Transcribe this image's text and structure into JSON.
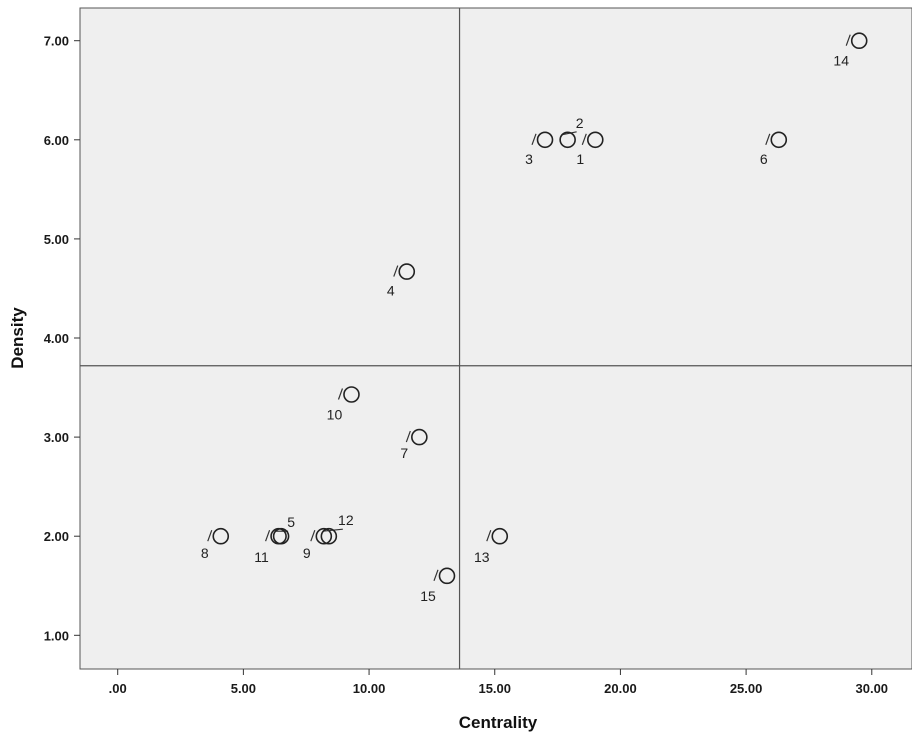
{
  "chart_data": {
    "type": "scatter",
    "xlabel": "Centrality",
    "ylabel": "Density",
    "xlim": [
      -1.5,
      31.6
    ],
    "ylim": [
      0.66,
      7.33
    ],
    "x_ticks": [
      {
        "value": 0,
        "label": ".00"
      },
      {
        "value": 5,
        "label": "5.00"
      },
      {
        "value": 10,
        "label": "10.00"
      },
      {
        "value": 15,
        "label": "15.00"
      },
      {
        "value": 20,
        "label": "20.00"
      },
      {
        "value": 25,
        "label": "25.00"
      },
      {
        "value": 30,
        "label": "30.00"
      }
    ],
    "y_ticks": [
      {
        "value": 1,
        "label": "1.00"
      },
      {
        "value": 2,
        "label": "2.00"
      },
      {
        "value": 3,
        "label": "3.00"
      },
      {
        "value": 4,
        "label": "4.00"
      },
      {
        "value": 5,
        "label": "5.00"
      },
      {
        "value": 6,
        "label": "6.00"
      },
      {
        "value": 7,
        "label": "7.00"
      }
    ],
    "reference_lines": {
      "x": 13.6,
      "y": 3.72
    },
    "points": [
      {
        "label": "1",
        "x": 19.0,
        "y": 6.0
      },
      {
        "label": "2",
        "x": 17.9,
        "y": 6.0
      },
      {
        "label": "3",
        "x": 17.0,
        "y": 6.0
      },
      {
        "label": "4",
        "x": 11.5,
        "y": 4.67
      },
      {
        "label": "5",
        "x": 6.5,
        "y": 2.0
      },
      {
        "label": "6",
        "x": 26.3,
        "y": 6.0
      },
      {
        "label": "7",
        "x": 12.0,
        "y": 3.0
      },
      {
        "label": "8",
        "x": 4.1,
        "y": 2.0
      },
      {
        "label": "9",
        "x": 8.2,
        "y": 2.0
      },
      {
        "label": "10",
        "x": 9.3,
        "y": 3.43
      },
      {
        "label": "11",
        "x": 6.4,
        "y": 2.0
      },
      {
        "label": "12",
        "x": 8.4,
        "y": 2.0
      },
      {
        "label": "13",
        "x": 15.2,
        "y": 2.0
      },
      {
        "label": "14",
        "x": 29.5,
        "y": 7.0
      },
      {
        "label": "15",
        "x": 13.1,
        "y": 1.6
      }
    ],
    "colors": {
      "plot_background": "#efefef",
      "frame": "#555555",
      "marker": "#222222"
    },
    "grid": false
  }
}
